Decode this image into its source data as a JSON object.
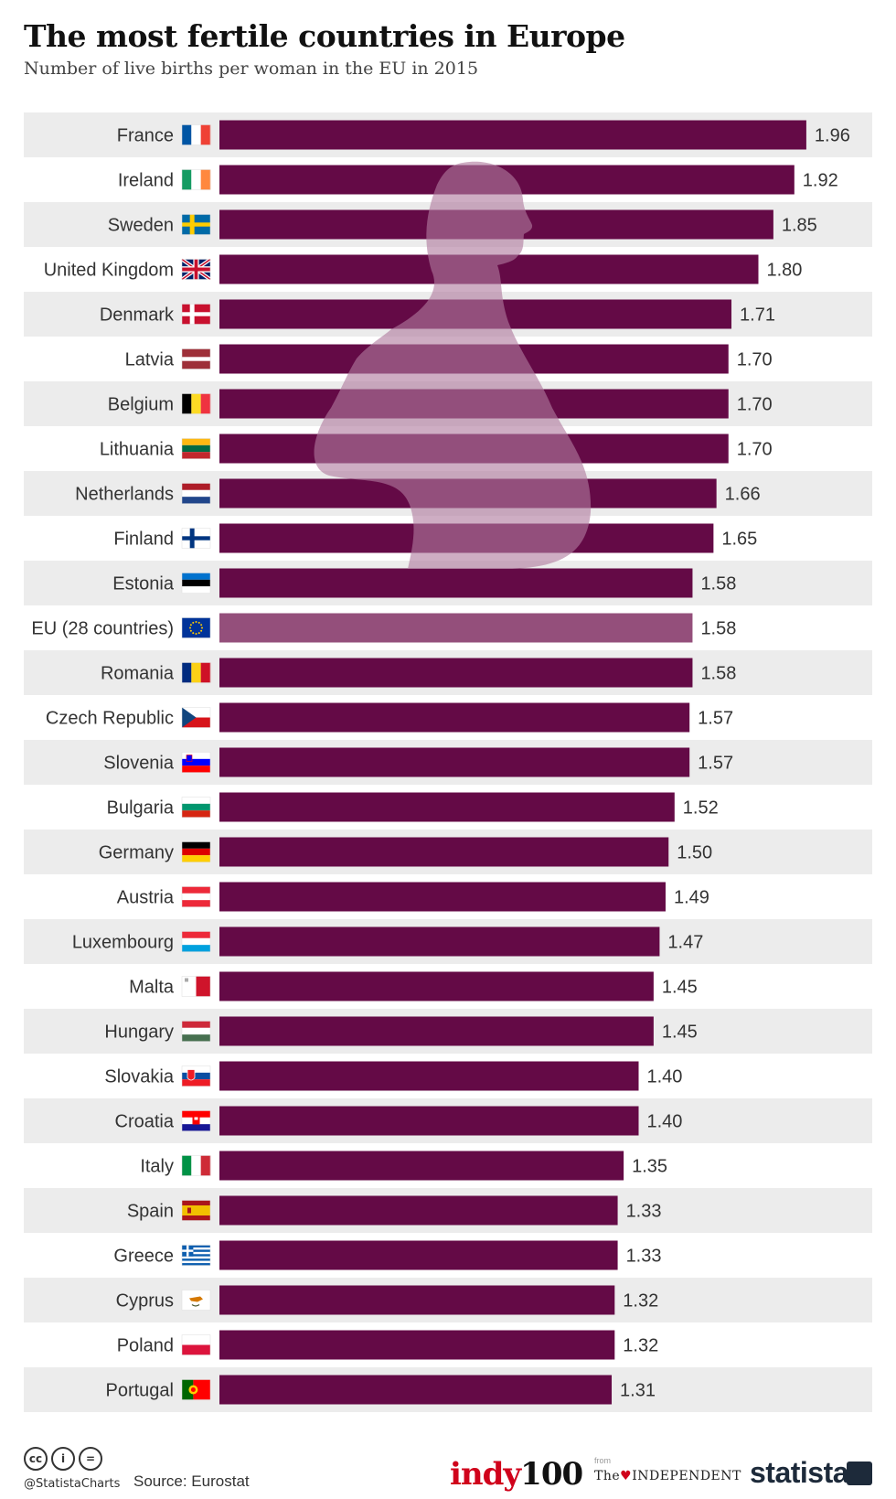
{
  "header": {
    "title": "The most fertile countries in Europe",
    "subtitle": "Number of live births per woman in the EU in 2015"
  },
  "colors": {
    "bar": "#640a46",
    "bar_highlight": "#944f7b",
    "stripe": "#ececec",
    "silhouette": "#b07a9e"
  },
  "chart_data": {
    "type": "bar",
    "orientation": "horizontal",
    "categories": [
      "France",
      "Ireland",
      "Sweden",
      "United Kingdom",
      "Denmark",
      "Latvia",
      "Belgium",
      "Lithuania",
      "Netherlands",
      "Finland",
      "Estonia",
      "EU (28 countries)",
      "Romania",
      "Czech Republic",
      "Slovenia",
      "Bulgaria",
      "Germany",
      "Austria",
      "Luxembourg",
      "Malta",
      "Hungary",
      "Slovakia",
      "Croatia",
      "Italy",
      "Spain",
      "Greece",
      "Cyprus",
      "Poland",
      "Portugal"
    ],
    "values": [
      1.96,
      1.92,
      1.85,
      1.8,
      1.71,
      1.7,
      1.7,
      1.7,
      1.66,
      1.65,
      1.58,
      1.58,
      1.58,
      1.57,
      1.57,
      1.52,
      1.5,
      1.49,
      1.47,
      1.45,
      1.45,
      1.4,
      1.4,
      1.35,
      1.33,
      1.33,
      1.32,
      1.32,
      1.31
    ],
    "value_labels": [
      "1.96",
      "1.92",
      "1.85",
      "1.80",
      "1.71",
      "1.70",
      "1.70",
      "1.70",
      "1.66",
      "1.65",
      "1.58",
      "1.58",
      "1.58",
      "1.57",
      "1.57",
      "1.52",
      "1.50",
      "1.49",
      "1.47",
      "1.45",
      "1.45",
      "1.40",
      "1.40",
      "1.35",
      "1.33",
      "1.33",
      "1.32",
      "1.32",
      "1.31"
    ],
    "highlight": "EU (28 countries)",
    "flags": [
      "flag-france-icon",
      "flag-ireland-icon",
      "flag-sweden-icon",
      "flag-united-kingdom-icon",
      "flag-denmark-icon",
      "flag-latvia-icon",
      "flag-belgium-icon",
      "flag-lithuania-icon",
      "flag-netherlands-icon",
      "flag-finland-icon",
      "flag-estonia-icon",
      "flag-eu-icon",
      "flag-romania-icon",
      "flag-czech-republic-icon",
      "flag-slovenia-icon",
      "flag-bulgaria-icon",
      "flag-germany-icon",
      "flag-austria-icon",
      "flag-luxembourg-icon",
      "flag-malta-icon",
      "flag-hungary-icon",
      "flag-slovakia-icon",
      "flag-croatia-icon",
      "flag-italy-icon",
      "flag-spain-icon",
      "flag-greece-icon",
      "flag-cyprus-icon",
      "flag-poland-icon",
      "flag-portugal-icon"
    ],
    "xlim": [
      0,
      2.0
    ],
    "grid": false,
    "legend": "none"
  },
  "footer": {
    "cc_icons": [
      "cc",
      "i",
      "="
    ],
    "handle": "@StatistaCharts",
    "source": "Source: Eurostat",
    "logo_indy_a": "indy",
    "logo_indy_b": "100",
    "from_label": "from",
    "independent_a": "The",
    "independent_b": "INDEPENDENT",
    "statista": "statista"
  }
}
